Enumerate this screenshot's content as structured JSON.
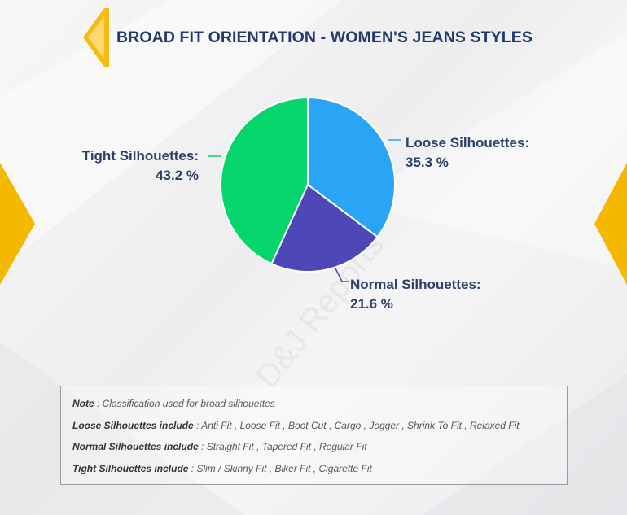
{
  "title": "BROAD FIT ORIENTATION - WOMEN'S JEANS STYLES",
  "watermark": "D&J Reports",
  "colors": {
    "accent": "#f5b800",
    "title": "#1f3a6b",
    "loose": "#2aa5f5",
    "normal": "#4d47b8",
    "tight": "#05d56b"
  },
  "chart_data": {
    "type": "pie",
    "title": "BROAD FIT ORIENTATION - WOMEN'S JEANS STYLES",
    "slices": [
      {
        "name": "Loose Silhouettes",
        "value": 35.3,
        "color": "#2aa5f5",
        "label_name": "Loose Silhouettes:",
        "label_value": "35.3 %"
      },
      {
        "name": "Normal Silhouettes",
        "value": 21.6,
        "color": "#4d47b8",
        "label_name": "Normal Silhouettes:",
        "label_value": "21.6 %"
      },
      {
        "name": "Tight Silhouettes",
        "value": 43.2,
        "color": "#05d56b",
        "label_name": "Tight Silhouettes:",
        "label_value": "43.2 %"
      }
    ],
    "unit": "%"
  },
  "note": {
    "line1_key": "Note",
    "line1_text": " : Classification used for broad silhouettes",
    "line2_key": "Loose Silhouettes include",
    "line2_text": " : Anti Fit , Loose Fit , Boot Cut , Cargo , Jogger , Shrink To Fit , Relaxed Fit",
    "line3_key": "Normal Silhouettes include",
    "line3_text": " : Straight Fit , Tapered Fit , Regular Fit",
    "line4_key": "Tight Silhouettes include",
    "line4_text": " : Slim / Skinny Fit , Biker Fit , Cigarette Fit"
  }
}
